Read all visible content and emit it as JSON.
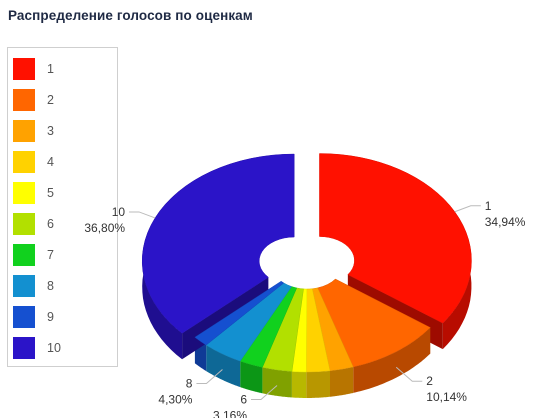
{
  "title": "Распределение голосов по оценкам",
  "chart_data": {
    "type": "pie",
    "title": "Распределение голосов по оценкам",
    "categories": [
      "1",
      "2",
      "3",
      "4",
      "5",
      "6",
      "7",
      "8",
      "9",
      "10"
    ],
    "values": [
      34.94,
      10.14,
      2.5,
      2.5,
      1.5,
      3.16,
      2.5,
      4.3,
      1.66,
      36.8
    ],
    "labels_shown": [
      "1",
      "2",
      "6",
      "8",
      "10"
    ],
    "percent_labels": {
      "1": "34,94%",
      "2": "10,14%",
      "6": "3,16%",
      "8": "4,30%",
      "10": "36,80%"
    },
    "colors": [
      "#ff1100",
      "#ff6600",
      "#ffa200",
      "#ffd200",
      "#ffff00",
      "#b2e000",
      "#11d11e",
      "#1390d0",
      "#1550d0",
      "#2b14c8"
    ],
    "legend_position": "left",
    "style": "3d-donut",
    "exploded": [
      "1",
      "10"
    ]
  },
  "legend": {
    "items": [
      {
        "label": "1",
        "color": "#ff1100"
      },
      {
        "label": "2",
        "color": "#ff6600"
      },
      {
        "label": "3",
        "color": "#ffa200"
      },
      {
        "label": "4",
        "color": "#ffd200"
      },
      {
        "label": "5",
        "color": "#ffff00"
      },
      {
        "label": "6",
        "color": "#b2e000"
      },
      {
        "label": "7",
        "color": "#11d11e"
      },
      {
        "label": "8",
        "color": "#1390d0"
      },
      {
        "label": "9",
        "color": "#1550d0"
      },
      {
        "label": "10",
        "color": "#2b14c8"
      }
    ]
  }
}
